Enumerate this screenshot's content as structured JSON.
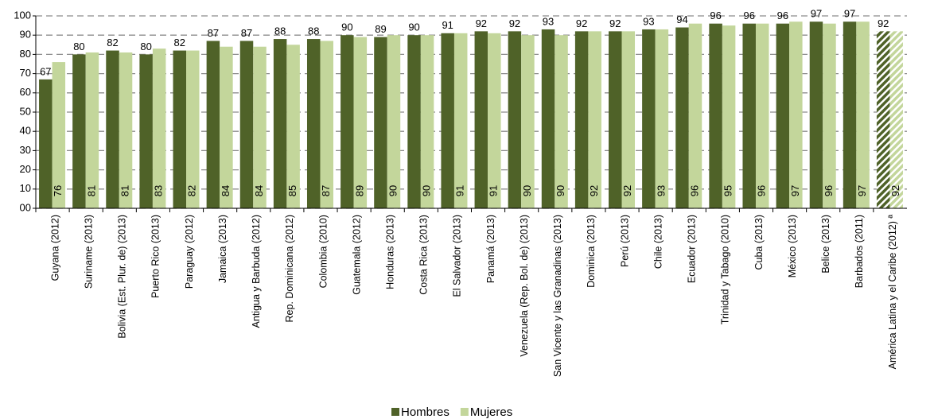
{
  "chart_data": {
    "type": "bar",
    "categories": [
      "Guyana (2012)",
      "Suriname (2013)",
      "Bolivia  (Est. Plur. de) (2013)",
      "Puerto Rico (2013)",
      "Paraguay (2012)",
      "Jamaica (2013)",
      "Antigua y Barbuda (2012)",
      "Rep. Dominicana (2012)",
      "Colombia (2010)",
      "Guatemala (2012)",
      "Honduras (2013)",
      "Costa Rica (2013)",
      "El Salvador (2013)",
      "Panamá (2013)",
      "Venezuela  (Rep. Bol. de) (2013)",
      "San Vicente y las Granadinas (2013)",
      "Dominica (2013)",
      "Perú (2013)",
      "Chile (2013)",
      "Ecuador (2013)",
      "Trinidad y Tabago (2010)",
      "Cuba (2013)",
      "México (2013)",
      "Belice (2013)",
      "Barbados (2011)",
      "América Latina y el Caribe (2012) ª"
    ],
    "series": [
      {
        "name": "Hombres",
        "color": "#4f6228",
        "values": [
          67,
          80,
          82,
          80,
          82,
          87,
          87,
          88,
          88,
          90,
          89,
          90,
          91,
          92,
          92,
          93,
          92,
          92,
          93,
          94,
          96,
          96,
          96,
          97,
          97,
          92
        ]
      },
      {
        "name": "Mujeres",
        "color": "#c3d69b",
        "values": [
          76,
          81,
          81,
          83,
          82,
          84,
          84,
          85,
          87,
          89,
          90,
          90,
          91,
          91,
          90,
          90,
          92,
          92,
          93,
          96,
          95,
          96,
          97,
          96,
          97,
          92
        ]
      }
    ],
    "ylim": [
      0,
      100
    ],
    "yticks": [
      {
        "value": 0,
        "label": "00"
      },
      10,
      20,
      30,
      40,
      50,
      60,
      70,
      80,
      90,
      100
    ],
    "grid": true,
    "legend": "bottom"
  }
}
